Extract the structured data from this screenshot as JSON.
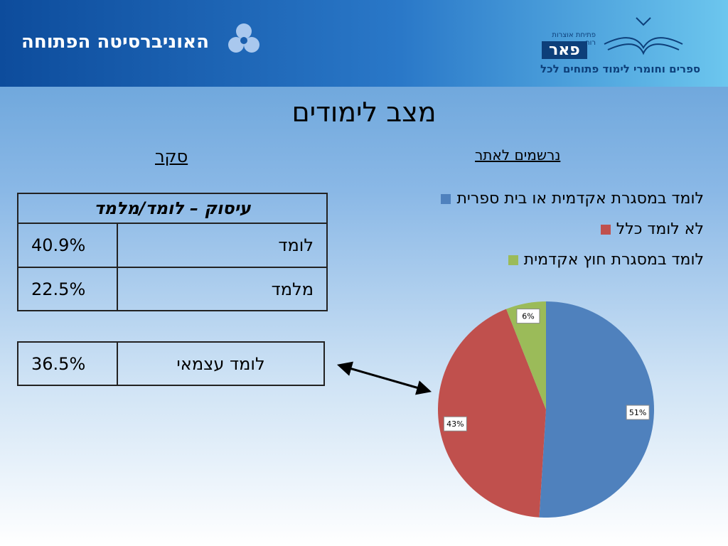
{
  "header": {
    "university": "האוניברסיטה הפתוחה",
    "logo_small": "פתיחת אוצרות רוח",
    "logo_name": "פאר",
    "logo_tagline": "ספרים וחומרי לימוד פתוחים לכל"
  },
  "title": "מצב לימודים",
  "survey": {
    "heading": "סקר",
    "table_header": "עיסוק – לומד/מלמד",
    "rows": [
      [
        "לומד",
        "40.9%"
      ],
      [
        "מלמד",
        "22.5%"
      ]
    ],
    "self_row": [
      "לומד עצמאי",
      "36.5%"
    ]
  },
  "chart_data": {
    "type": "pie",
    "title": "נרשמים לאתר",
    "categories": [
      "לומד במסגרת אקדמית או בית ספרית",
      "לא לומד כלל",
      "לומד במסגרת חוץ אקדמית"
    ],
    "values": [
      51,
      43,
      6
    ],
    "value_labels": [
      "51%",
      "43%",
      "6%"
    ],
    "colors": [
      "#4f81bd",
      "#c0504d",
      "#9bbb59"
    ]
  }
}
